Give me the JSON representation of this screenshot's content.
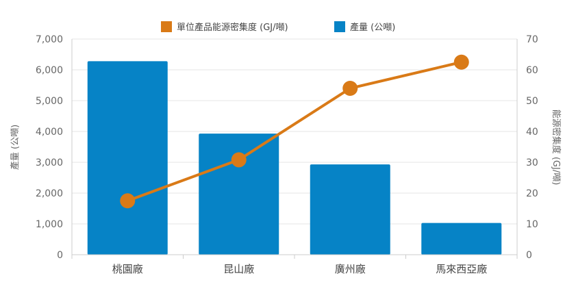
{
  "chart_data": {
    "type": "bar",
    "categories": [
      "桃園廠",
      "昆山廠",
      "廣州廠",
      "馬來西亞廠"
    ],
    "series": [
      {
        "name": "單位產品能源密集度 (GJ/噸)",
        "type": "line",
        "axis": "right",
        "color": "#D97A17",
        "values": [
          17.5,
          30.8,
          54,
          62.5
        ]
      },
      {
        "name": "產量 (公噸)",
        "type": "bar",
        "axis": "left",
        "color": "#0683C6",
        "values": [
          6280,
          3930,
          2930,
          1030
        ]
      }
    ],
    "y_left": {
      "label": "產量 (公噸)",
      "lim": [
        0,
        7000
      ],
      "ticks": [
        "0",
        "1,000",
        "2,000",
        "3,000",
        "4,000",
        "5,000",
        "6,000",
        "7,000"
      ]
    },
    "y_right": {
      "label": "能源密集度 (GJ/噸)",
      "lim": [
        0,
        70
      ],
      "ticks": [
        "0",
        "10",
        "20",
        "30",
        "40",
        "50",
        "60",
        "70"
      ]
    },
    "grid": true,
    "legend_position": "top"
  }
}
